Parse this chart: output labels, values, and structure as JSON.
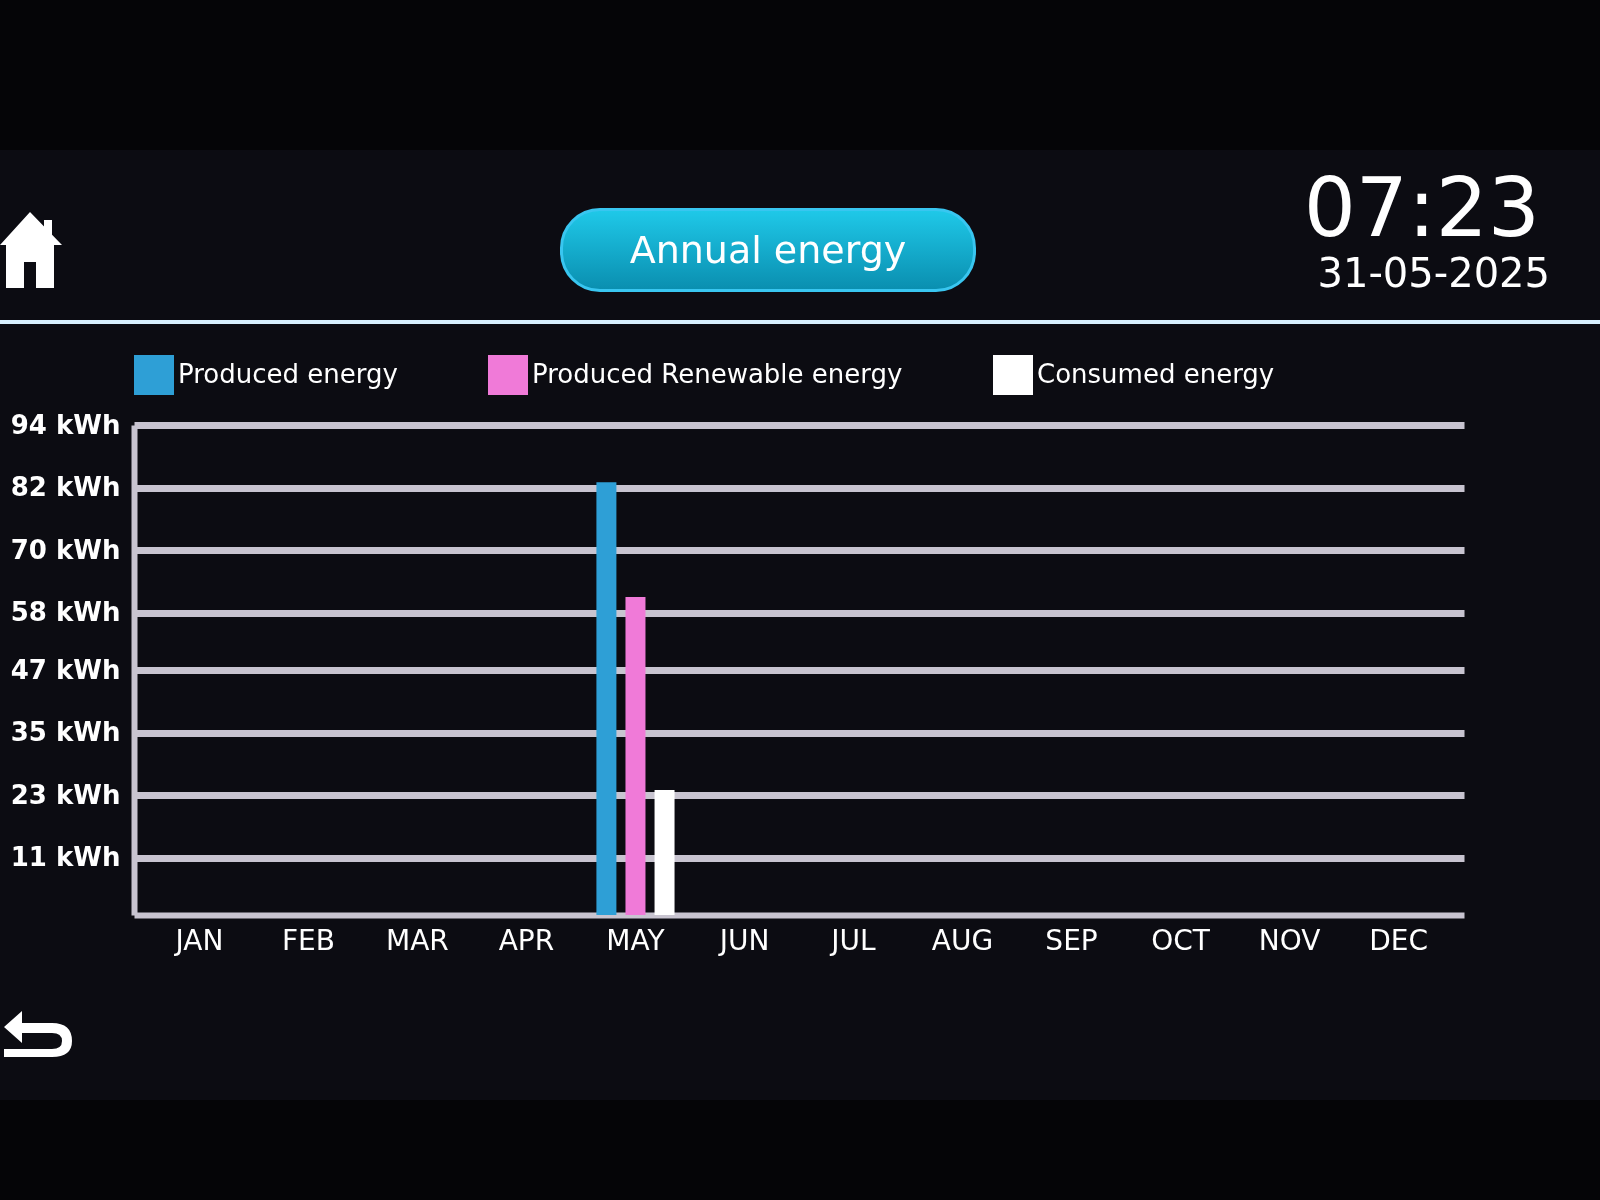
{
  "chart_data": {
    "type": "bar",
    "title": "Annual energy",
    "annotations": [
      "07:23",
      "31-05-2025"
    ],
    "categories": [
      "JAN",
      "FEB",
      "MAR",
      "APR",
      "MAY",
      "JUN",
      "JUL",
      "AUG",
      "SEP",
      "OCT",
      "NOV",
      "DEC"
    ],
    "series": [
      {
        "name": "Produced energy",
        "color": "#2e9fd6",
        "values": [
          null,
          null,
          null,
          null,
          83,
          null,
          null,
          null,
          null,
          null,
          null,
          null
        ]
      },
      {
        "name": "Produced Renewable energy",
        "color": "#f07ad8",
        "values": [
          null,
          null,
          null,
          null,
          61,
          null,
          null,
          null,
          null,
          null,
          null,
          null
        ]
      },
      {
        "name": "Consumed energy",
        "color": "#ffffff",
        "values": [
          null,
          null,
          null,
          null,
          24,
          null,
          null,
          null,
          null,
          null,
          null,
          null
        ]
      }
    ],
    "ylim": [
      0,
      94
    ],
    "yticks": [
      {
        "value": 11,
        "label": "11 kWh"
      },
      {
        "value": 23,
        "label": "23 kWh"
      },
      {
        "value": 35,
        "label": "35 kWh"
      },
      {
        "value": 47,
        "label": "47 kWh"
      },
      {
        "value": 58,
        "label": "58 kWh"
      },
      {
        "value": 70,
        "label": "70 kWh"
      },
      {
        "value": 82,
        "label": "82 kWh"
      },
      {
        "value": 94,
        "label": "94 kWh"
      }
    ],
    "grid": "y",
    "legend": "top"
  }
}
